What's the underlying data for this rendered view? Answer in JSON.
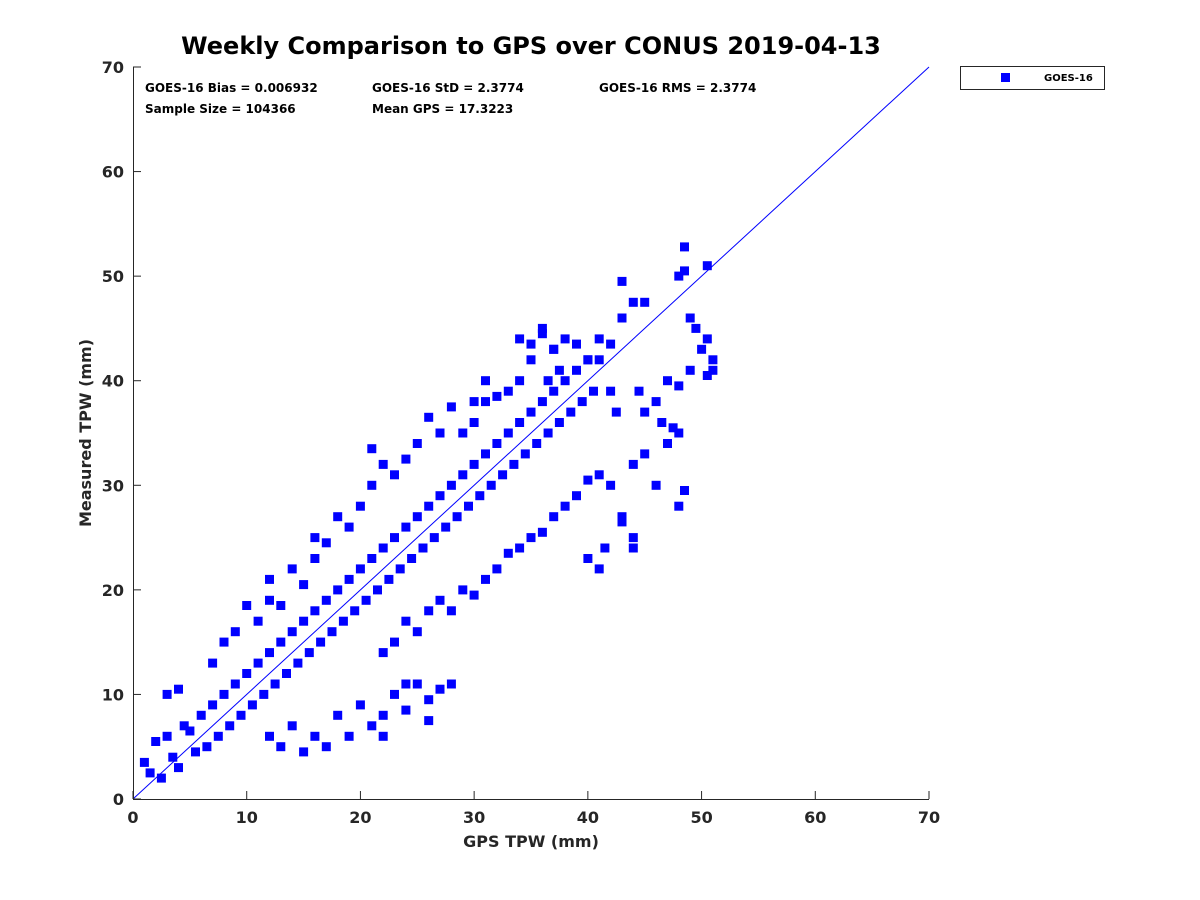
{
  "chart_data": {
    "type": "scatter",
    "title": "Weekly Comparison to GPS over CONUS 2019-04-13",
    "xlabel": "GPS TPW (mm)",
    "ylabel": "Measured TPW (mm)",
    "xlim": [
      0,
      70
    ],
    "ylim": [
      0,
      70
    ],
    "xticks": [
      "0",
      "10",
      "20",
      "30",
      "40",
      "50",
      "60",
      "70"
    ],
    "yticks": [
      "0",
      "10",
      "20",
      "30",
      "40",
      "50",
      "60",
      "70"
    ],
    "grid": false,
    "legend_position": "outside top-right",
    "reference_line": {
      "type": "one-to-one",
      "from": [
        0,
        0
      ],
      "to": [
        70,
        70
      ],
      "color": "#0000ff"
    },
    "stats": [
      "GOES-16 Bias = 0.006932",
      "GOES-16 StD = 2.3774",
      "GOES-16 RMS = 2.3774",
      "Sample Size = 104366",
      "Mean GPS = 17.3223"
    ],
    "series": [
      {
        "name": "GOES-16",
        "color": "#0000ff",
        "marker": "square",
        "points": [
          [
            1,
            3.5
          ],
          [
            1.5,
            2.5
          ],
          [
            2,
            5.5
          ],
          [
            2.5,
            2
          ],
          [
            3,
            6
          ],
          [
            3.5,
            4
          ],
          [
            4,
            3
          ],
          [
            4.5,
            7
          ],
          [
            5,
            6.5
          ],
          [
            5.5,
            4.5
          ],
          [
            6,
            8
          ],
          [
            6.5,
            5
          ],
          [
            7,
            9
          ],
          [
            7.5,
            6
          ],
          [
            8,
            10
          ],
          [
            8.5,
            7
          ],
          [
            9,
            11
          ],
          [
            9.5,
            8
          ],
          [
            10,
            12
          ],
          [
            10.5,
            9
          ],
          [
            11,
            13
          ],
          [
            11.5,
            10
          ],
          [
            12,
            14
          ],
          [
            12.5,
            11
          ],
          [
            13,
            15
          ],
          [
            13.5,
            12
          ],
          [
            14,
            16
          ],
          [
            14.5,
            13
          ],
          [
            15,
            17
          ],
          [
            15.5,
            14
          ],
          [
            16,
            18
          ],
          [
            16.5,
            15
          ],
          [
            17,
            19
          ],
          [
            17.5,
            16
          ],
          [
            18,
            20
          ],
          [
            18.5,
            17
          ],
          [
            19,
            21
          ],
          [
            19.5,
            18
          ],
          [
            20,
            22
          ],
          [
            20.5,
            19
          ],
          [
            21,
            23
          ],
          [
            21.5,
            20
          ],
          [
            22,
            24
          ],
          [
            22.5,
            21
          ],
          [
            23,
            25
          ],
          [
            23.5,
            22
          ],
          [
            24,
            26
          ],
          [
            24.5,
            23
          ],
          [
            25,
            27
          ],
          [
            25.5,
            24
          ],
          [
            26,
            28
          ],
          [
            26.5,
            25
          ],
          [
            27,
            29
          ],
          [
            27.5,
            26
          ],
          [
            28,
            30
          ],
          [
            28.5,
            27
          ],
          [
            29,
            31
          ],
          [
            29.5,
            28
          ],
          [
            30,
            32
          ],
          [
            30.5,
            29
          ],
          [
            31,
            33
          ],
          [
            31.5,
            30
          ],
          [
            32,
            34
          ],
          [
            32.5,
            31
          ],
          [
            33,
            35
          ],
          [
            33.5,
            32
          ],
          [
            34,
            36
          ],
          [
            34.5,
            33
          ],
          [
            35,
            37
          ],
          [
            35.5,
            34
          ],
          [
            36,
            38
          ],
          [
            36.5,
            35
          ],
          [
            37,
            39
          ],
          [
            37.5,
            36
          ],
          [
            38,
            40
          ],
          [
            38.5,
            37
          ],
          [
            39,
            41
          ],
          [
            39.5,
            38
          ],
          [
            40,
            42
          ],
          [
            40.5,
            39
          ],
          [
            3,
            10
          ],
          [
            4,
            10.5
          ],
          [
            7,
            13
          ],
          [
            8,
            15
          ],
          [
            9,
            16
          ],
          [
            10,
            18.5
          ],
          [
            11,
            17
          ],
          [
            12,
            19
          ],
          [
            12,
            21
          ],
          [
            13,
            18.5
          ],
          [
            14,
            22
          ],
          [
            15,
            20.5
          ],
          [
            16,
            23
          ],
          [
            16,
            25
          ],
          [
            17,
            24.5
          ],
          [
            18,
            27
          ],
          [
            19,
            26
          ],
          [
            20,
            28
          ],
          [
            21,
            30
          ],
          [
            21,
            33.5
          ],
          [
            22,
            32
          ],
          [
            23,
            31
          ],
          [
            24,
            32.5
          ],
          [
            25,
            34
          ],
          [
            26,
            36.5
          ],
          [
            27,
            35
          ],
          [
            28,
            37.5
          ],
          [
            29,
            35
          ],
          [
            30,
            36
          ],
          [
            31,
            38
          ],
          [
            34,
            44
          ],
          [
            35,
            43.5
          ],
          [
            36,
            45
          ],
          [
            37,
            43
          ],
          [
            38,
            44
          ],
          [
            39,
            43.5
          ],
          [
            40,
            42
          ],
          [
            41,
            44
          ],
          [
            42,
            43.5
          ],
          [
            43,
            46
          ],
          [
            12,
            6
          ],
          [
            13,
            5
          ],
          [
            14,
            7
          ],
          [
            15,
            4.5
          ],
          [
            16,
            6
          ],
          [
            17,
            5
          ],
          [
            18,
            8
          ],
          [
            19,
            6
          ],
          [
            20,
            9
          ],
          [
            21,
            7
          ],
          [
            22,
            8
          ],
          [
            23,
            10
          ],
          [
            24,
            8.5
          ],
          [
            25,
            11
          ],
          [
            26,
            9.5
          ],
          [
            27,
            10.5
          ],
          [
            28,
            11
          ],
          [
            24,
            11
          ],
          [
            22,
            6
          ],
          [
            26,
            7.5
          ],
          [
            22,
            14
          ],
          [
            23,
            15
          ],
          [
            24,
            17
          ],
          [
            25,
            16
          ],
          [
            26,
            18
          ],
          [
            27,
            19
          ],
          [
            28,
            18
          ],
          [
            29,
            20
          ],
          [
            30,
            19.5
          ],
          [
            31,
            21
          ],
          [
            32,
            22
          ],
          [
            33,
            23.5
          ],
          [
            34,
            24
          ],
          [
            35,
            25
          ],
          [
            36,
            25.5
          ],
          [
            37,
            27
          ],
          [
            38,
            28
          ],
          [
            39,
            29
          ],
          [
            40,
            30.5
          ],
          [
            41,
            31
          ],
          [
            40,
            23
          ],
          [
            41,
            22
          ],
          [
            41.5,
            24
          ],
          [
            43,
            27
          ],
          [
            44,
            24
          ],
          [
            44,
            25
          ],
          [
            43,
            26.5
          ],
          [
            42,
            30
          ],
          [
            44,
            32
          ],
          [
            45,
            33
          ],
          [
            46,
            30
          ],
          [
            47,
            34
          ],
          [
            48,
            35
          ],
          [
            48,
            28
          ],
          [
            48.5,
            29.5
          ],
          [
            47.5,
            35.5
          ],
          [
            46.5,
            36
          ],
          [
            45,
            37
          ],
          [
            46,
            38
          ],
          [
            44.5,
            39
          ],
          [
            47,
            40
          ],
          [
            48,
            39.5
          ],
          [
            49,
            41
          ],
          [
            50.5,
            40.5
          ],
          [
            51,
            41
          ],
          [
            50,
            43
          ],
          [
            50.5,
            44
          ],
          [
            51,
            42
          ],
          [
            49,
            46
          ],
          [
            49.5,
            45
          ],
          [
            43,
            49.5
          ],
          [
            44,
            47.5
          ],
          [
            45,
            47.5
          ],
          [
            48,
            50
          ],
          [
            48.5,
            50.5
          ],
          [
            48.5,
            52.8
          ],
          [
            50.5,
            51
          ],
          [
            41,
            42
          ],
          [
            42,
            39
          ],
          [
            42.5,
            37
          ],
          [
            36,
            44.5
          ],
          [
            37,
            43
          ],
          [
            35,
            42
          ],
          [
            34,
            40
          ],
          [
            33,
            39
          ],
          [
            32,
            38.5
          ],
          [
            31,
            40
          ],
          [
            30,
            38
          ],
          [
            36.5,
            40
          ],
          [
            37.5,
            41
          ]
        ]
      }
    ]
  }
}
